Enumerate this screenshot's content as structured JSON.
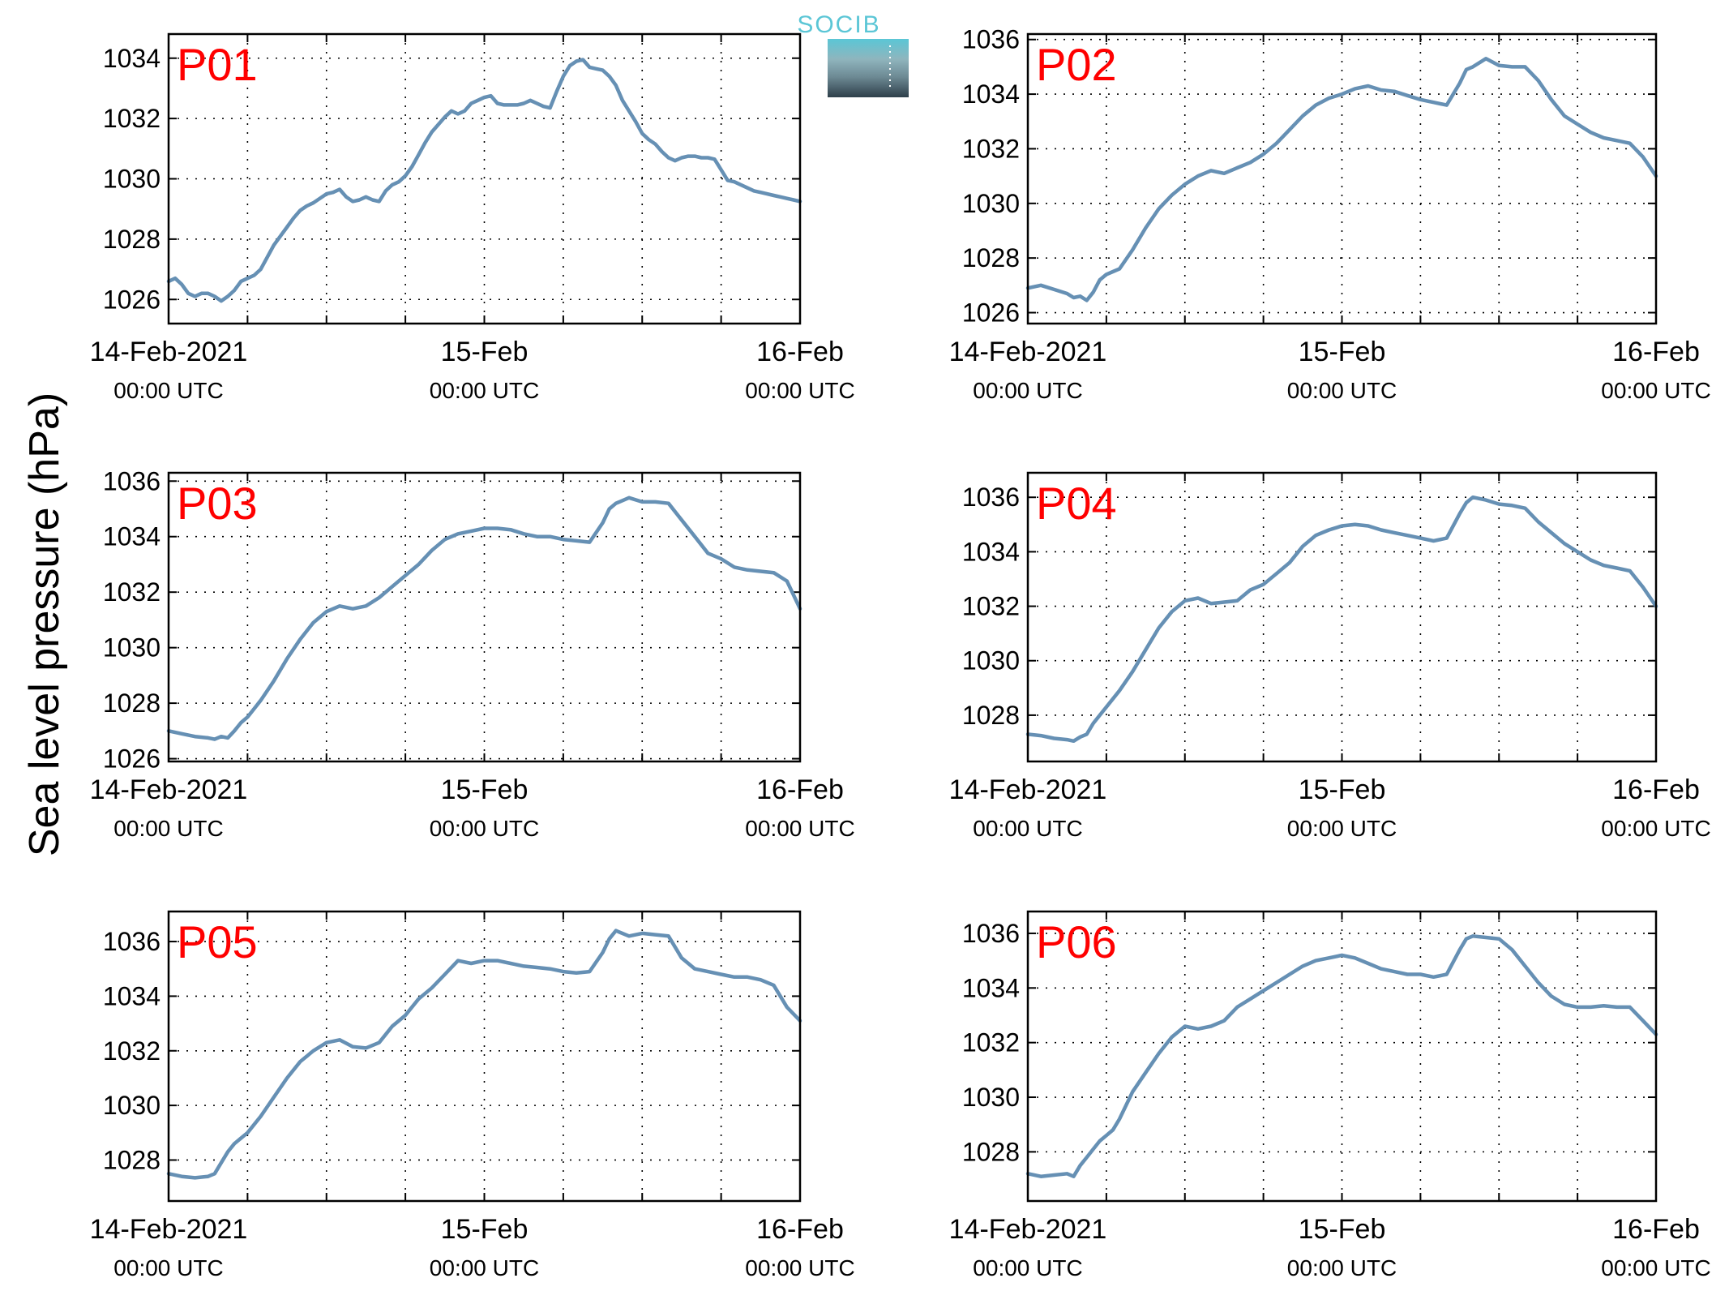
{
  "y_axis_label": "Sea level pressure (hPa)",
  "logo": {
    "text": "SOCIB"
  },
  "colors": {
    "line": "#6690b4",
    "panel_title": "#ff0000"
  },
  "x_tick_labels": [
    {
      "date": "14-Feb-2021",
      "time": "00:00 UTC"
    },
    {
      "date": "15-Feb",
      "time": "00:00 UTC"
    },
    {
      "date": "16-Feb",
      "time": "00:00 UTC"
    }
  ],
  "chart_data": [
    {
      "type": "line",
      "title": "P01",
      "xlim_hours": [
        0,
        48
      ],
      "ylim": [
        1025.2,
        1034.8
      ],
      "yticks": [
        1026,
        1028,
        1030,
        1032,
        1034
      ],
      "grid": true,
      "x_hours": [
        0,
        0.5,
        1,
        1.5,
        2,
        2.5,
        3,
        3.5,
        4,
        4.5,
        5,
        5.5,
        6,
        6.5,
        7,
        7.5,
        8,
        8.5,
        9,
        9.5,
        10,
        10.5,
        11,
        11.5,
        12,
        12.5,
        13,
        13.5,
        14,
        14.5,
        15,
        15.5,
        16,
        16.5,
        17,
        17.5,
        18,
        18.5,
        19,
        19.5,
        20,
        20.5,
        21,
        21.5,
        22,
        22.5,
        23,
        23.5,
        24,
        24.5,
        25,
        25.5,
        26,
        26.5,
        27,
        27.5,
        28,
        28.5,
        29,
        29.5,
        30,
        30.5,
        31,
        31.5,
        32,
        32.5,
        33,
        33.5,
        34,
        34.5,
        35,
        35.5,
        36,
        36.5,
        37,
        37.5,
        38,
        38.5,
        39,
        39.5,
        40,
        40.5,
        41,
        41.5,
        42,
        42.5,
        43,
        43.5,
        44,
        44.5,
        45,
        45.5,
        46,
        46.5,
        47,
        47.5,
        48
      ],
      "values": [
        1026.6,
        1026.7,
        1026.5,
        1026.2,
        1026.1,
        1026.2,
        1026.2,
        1026.1,
        1025.95,
        1026.1,
        1026.3,
        1026.6,
        1026.7,
        1026.8,
        1027.0,
        1027.4,
        1027.8,
        1028.1,
        1028.4,
        1028.7,
        1028.95,
        1029.1,
        1029.2,
        1029.35,
        1029.5,
        1029.55,
        1029.65,
        1029.4,
        1029.25,
        1029.3,
        1029.4,
        1029.3,
        1029.25,
        1029.6,
        1029.8,
        1029.9,
        1030.1,
        1030.4,
        1030.8,
        1031.2,
        1031.55,
        1031.8,
        1032.05,
        1032.25,
        1032.15,
        1032.25,
        1032.5,
        1032.6,
        1032.7,
        1032.75,
        1032.5,
        1032.45,
        1032.45,
        1032.45,
        1032.5,
        1032.6,
        1032.5,
        1032.4,
        1032.35,
        1032.9,
        1033.4,
        1033.75,
        1033.9,
        1033.95,
        1033.7,
        1033.65,
        1033.6,
        1033.4,
        1033.1,
        1032.6,
        1032.25,
        1031.9,
        1031.5,
        1031.3,
        1031.15,
        1030.9,
        1030.7,
        1030.6,
        1030.7,
        1030.75,
        1030.75,
        1030.7,
        1030.7,
        1030.65,
        1030.3,
        1029.95,
        1029.9,
        1029.8,
        1029.7,
        1029.6,
        1029.55,
        1029.5,
        1029.45,
        1029.4,
        1029.35,
        1029.3,
        1029.25
      ]
    },
    {
      "type": "line",
      "title": "P02",
      "xlim_hours": [
        0,
        48
      ],
      "ylim": [
        1025.6,
        1036.2
      ],
      "yticks": [
        1026,
        1028,
        1030,
        1032,
        1034,
        1036
      ],
      "grid": true,
      "x_hours": [
        0,
        1,
        2,
        3,
        3.5,
        4,
        4.5,
        5,
        5.5,
        6,
        6.5,
        7,
        8,
        9,
        10,
        11,
        12,
        13,
        14,
        15,
        16,
        17,
        18,
        19,
        20,
        21,
        22,
        23,
        24,
        25,
        26,
        27,
        28,
        29,
        30,
        31,
        32,
        33,
        33.5,
        34,
        35,
        36,
        37,
        38,
        39,
        40,
        41,
        42,
        43,
        44,
        45,
        46,
        47,
        48
      ],
      "values": [
        1026.9,
        1027.0,
        1026.85,
        1026.7,
        1026.55,
        1026.6,
        1026.45,
        1026.75,
        1027.2,
        1027.4,
        1027.5,
        1027.6,
        1028.3,
        1029.1,
        1029.8,
        1030.3,
        1030.7,
        1031.0,
        1031.2,
        1031.1,
        1031.3,
        1031.5,
        1031.8,
        1032.2,
        1032.7,
        1033.2,
        1033.6,
        1033.85,
        1034.0,
        1034.2,
        1034.3,
        1034.15,
        1034.1,
        1033.95,
        1033.8,
        1033.7,
        1033.6,
        1034.4,
        1034.9,
        1035.0,
        1035.3,
        1035.05,
        1035.0,
        1035.0,
        1034.5,
        1033.8,
        1033.2,
        1032.9,
        1032.6,
        1032.4,
        1032.3,
        1032.2,
        1031.7,
        1031.0
      ]
    },
    {
      "type": "line",
      "title": "P03",
      "xlim_hours": [
        0,
        48
      ],
      "ylim": [
        1025.9,
        1036.3
      ],
      "yticks": [
        1026,
        1028,
        1030,
        1032,
        1034,
        1036
      ],
      "grid": true,
      "x_hours": [
        0,
        1,
        2,
        3,
        3.5,
        4,
        4.5,
        5,
        5.5,
        6,
        6.5,
        7,
        8,
        9,
        10,
        11,
        12,
        13,
        14,
        15,
        16,
        17,
        18,
        19,
        20,
        21,
        22,
        23,
        24,
        25,
        26,
        27,
        28,
        29,
        30,
        31,
        32,
        33,
        33.5,
        34,
        35,
        36,
        37,
        38,
        39,
        40,
        41,
        42,
        43,
        44,
        45,
        46,
        47,
        48
      ],
      "values": [
        1027.0,
        1026.9,
        1026.8,
        1026.75,
        1026.7,
        1026.8,
        1026.75,
        1027.0,
        1027.3,
        1027.5,
        1027.8,
        1028.1,
        1028.8,
        1029.6,
        1030.3,
        1030.9,
        1031.3,
        1031.5,
        1031.4,
        1031.5,
        1031.8,
        1032.2,
        1032.6,
        1033.0,
        1033.5,
        1033.9,
        1034.1,
        1034.2,
        1034.3,
        1034.3,
        1034.25,
        1034.1,
        1034.0,
        1034.0,
        1033.9,
        1033.85,
        1033.8,
        1034.5,
        1035.0,
        1035.2,
        1035.4,
        1035.25,
        1035.25,
        1035.2,
        1034.6,
        1034.0,
        1033.4,
        1033.2,
        1032.9,
        1032.8,
        1032.75,
        1032.7,
        1032.4,
        1031.4
      ]
    },
    {
      "type": "line",
      "title": "P04",
      "xlim_hours": [
        0,
        48
      ],
      "ylim": [
        1026.3,
        1036.9
      ],
      "yticks": [
        1028,
        1030,
        1032,
        1034,
        1036
      ],
      "grid": true,
      "x_hours": [
        0,
        1,
        2,
        3,
        3.5,
        4,
        4.5,
        5,
        5.5,
        6,
        6.5,
        7,
        8,
        9,
        10,
        11,
        12,
        13,
        14,
        15,
        16,
        17,
        18,
        19,
        20,
        21,
        22,
        23,
        24,
        25,
        26,
        27,
        28,
        29,
        30,
        31,
        32,
        33,
        33.5,
        34,
        35,
        36,
        37,
        38,
        39,
        40,
        41,
        42,
        43,
        44,
        45,
        46,
        47,
        48
      ],
      "values": [
        1027.3,
        1027.25,
        1027.15,
        1027.1,
        1027.05,
        1027.2,
        1027.3,
        1027.7,
        1028.0,
        1028.3,
        1028.6,
        1028.9,
        1029.6,
        1030.4,
        1031.2,
        1031.8,
        1032.2,
        1032.3,
        1032.1,
        1032.15,
        1032.2,
        1032.6,
        1032.8,
        1033.2,
        1033.6,
        1034.2,
        1034.6,
        1034.8,
        1034.95,
        1035.0,
        1034.95,
        1034.8,
        1034.7,
        1034.6,
        1034.5,
        1034.4,
        1034.5,
        1035.4,
        1035.8,
        1036.0,
        1035.9,
        1035.75,
        1035.7,
        1035.6,
        1035.1,
        1034.7,
        1034.3,
        1034.0,
        1033.7,
        1033.5,
        1033.4,
        1033.3,
        1032.7,
        1032.0
      ]
    },
    {
      "type": "line",
      "title": "P05",
      "xlim_hours": [
        0,
        48
      ],
      "ylim": [
        1026.5,
        1037.1
      ],
      "yticks": [
        1028,
        1030,
        1032,
        1034,
        1036
      ],
      "grid": true,
      "x_hours": [
        0,
        1,
        2,
        3,
        3.5,
        4,
        4.5,
        5,
        5.5,
        6,
        6.5,
        7,
        8,
        9,
        10,
        11,
        12,
        13,
        14,
        15,
        16,
        17,
        18,
        19,
        20,
        21,
        22,
        23,
        24,
        25,
        26,
        27,
        28,
        29,
        30,
        31,
        32,
        33,
        33.5,
        34,
        35,
        36,
        37,
        38,
        39,
        40,
        41,
        42,
        43,
        44,
        45,
        46,
        47,
        48
      ],
      "values": [
        1027.5,
        1027.4,
        1027.35,
        1027.4,
        1027.5,
        1027.9,
        1028.3,
        1028.6,
        1028.8,
        1029.0,
        1029.3,
        1029.6,
        1030.3,
        1031.0,
        1031.6,
        1032.0,
        1032.3,
        1032.4,
        1032.15,
        1032.1,
        1032.3,
        1032.9,
        1033.3,
        1033.9,
        1034.3,
        1034.8,
        1035.3,
        1035.2,
        1035.3,
        1035.3,
        1035.2,
        1035.1,
        1035.05,
        1035.0,
        1034.9,
        1034.85,
        1034.9,
        1035.6,
        1036.1,
        1036.4,
        1036.2,
        1036.3,
        1036.25,
        1036.2,
        1035.4,
        1035.0,
        1034.9,
        1034.8,
        1034.7,
        1034.7,
        1034.6,
        1034.4,
        1033.6,
        1033.1
      ]
    },
    {
      "type": "line",
      "title": "P06",
      "xlim_hours": [
        0,
        48
      ],
      "ylim": [
        1026.2,
        1036.8
      ],
      "yticks": [
        1028,
        1030,
        1032,
        1034,
        1036
      ],
      "grid": true,
      "x_hours": [
        0,
        1,
        2,
        3,
        3.5,
        4,
        4.5,
        5,
        5.5,
        6,
        6.5,
        7,
        8,
        9,
        10,
        11,
        12,
        13,
        14,
        15,
        16,
        17,
        18,
        19,
        20,
        21,
        22,
        23,
        24,
        25,
        26,
        27,
        28,
        29,
        30,
        31,
        32,
        33,
        33.5,
        34,
        35,
        36,
        37,
        38,
        39,
        40,
        41,
        42,
        43,
        44,
        45,
        46,
        47,
        48
      ],
      "values": [
        1027.2,
        1027.1,
        1027.15,
        1027.2,
        1027.1,
        1027.5,
        1027.8,
        1028.1,
        1028.4,
        1028.6,
        1028.8,
        1029.2,
        1030.2,
        1030.9,
        1031.6,
        1032.2,
        1032.6,
        1032.5,
        1032.6,
        1032.8,
        1033.3,
        1033.6,
        1033.9,
        1034.2,
        1034.5,
        1034.8,
        1035.0,
        1035.1,
        1035.2,
        1035.1,
        1034.9,
        1034.7,
        1034.6,
        1034.5,
        1034.5,
        1034.4,
        1034.5,
        1035.4,
        1035.8,
        1035.9,
        1035.85,
        1035.8,
        1035.4,
        1034.8,
        1034.2,
        1033.7,
        1033.4,
        1033.3,
        1033.3,
        1033.35,
        1033.3,
        1033.3,
        1032.8,
        1032.3
      ]
    }
  ]
}
